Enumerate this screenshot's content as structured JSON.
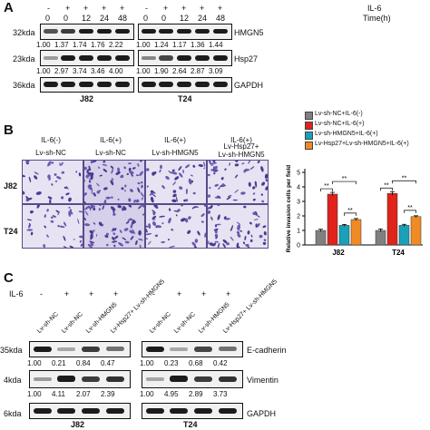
{
  "panelA": {
    "letter": "A",
    "il6_label": "IL-6",
    "time_label": "Time(h)",
    "signs": [
      "-",
      "+",
      "+",
      "+",
      "+"
    ],
    "times": [
      "0",
      "0",
      "12",
      "24",
      "48"
    ],
    "left": {
      "cell_line": "J82",
      "rows": [
        {
          "kda": "32kda",
          "values": [
            "1.00",
            "1.37",
            "1.74",
            "1.76",
            "2.22"
          ]
        },
        {
          "kda": "23kda",
          "values": [
            "1.00",
            "2.97",
            "3.74",
            "3.46",
            "4.00"
          ]
        },
        {
          "kda": "36kda",
          "values": []
        }
      ]
    },
    "right": {
      "cell_line": "T24",
      "rows": [
        {
          "protein": "HMGN5",
          "values": [
            "1.00",
            "1.24",
            "1.17",
            "1.36",
            "1.44"
          ]
        },
        {
          "protein": "Hsp27",
          "values": [
            "1.00",
            "1.90",
            "2.64",
            "2.87",
            "3.09"
          ]
        },
        {
          "protein": "GAPDH",
          "values": []
        }
      ]
    }
  },
  "panelB": {
    "letter": "B",
    "column_headers": [
      {
        "line1": "IL-6(-)",
        "line2": "Lv-sh-NC"
      },
      {
        "line1": "IL-6(+)",
        "line2": "Lv-sh-NC"
      },
      {
        "line1": "IL-6(+)",
        "line2": "Lv-sh-HMGN5"
      },
      {
        "line1": "IL-6(+)",
        "line2": "Lv-Hsp27+",
        "line3": "Lv-sh-HMGN5"
      }
    ],
    "row_labels": [
      "J82",
      "T24"
    ]
  },
  "legend": [
    {
      "label": "Lv-sh-NC+IL-6(-)",
      "color": "#808080"
    },
    {
      "label": "Lv-sh-NC+IL-6(+)",
      "color": "#e0231b"
    },
    {
      "label": "Lv-sh-HMGN5+IL-6(+)",
      "color": "#1aa0b8"
    },
    {
      "label": "Lv-Hsp27+Lv-sh-HMGN5+IL-6(+)",
      "color": "#f08a24"
    }
  ],
  "chart_data": {
    "type": "bar",
    "categories": [
      "J82",
      "T24"
    ],
    "ylabel": "Relative invasion cells per field",
    "ylim": [
      0,
      5
    ],
    "yticks": [
      "0",
      "1",
      "2",
      "3",
      "4",
      "5"
    ],
    "series": [
      {
        "name": "Lv-sh-NC+IL-6(-)",
        "values": [
          1.0,
          1.0
        ]
      },
      {
        "name": "Lv-sh-NC+IL-6(+)",
        "values": [
          3.5,
          3.55
        ]
      },
      {
        "name": "Lv-sh-HMGN5+IL-6(+)",
        "values": [
          1.35,
          1.35
        ]
      },
      {
        "name": "Lv-Hsp27+Lv-sh-HMGN5+IL-6(+)",
        "values": [
          1.75,
          1.95
        ]
      }
    ],
    "errors": [
      [
        0.08,
        0.1
      ],
      [
        0.12,
        0.12
      ],
      [
        0.06,
        0.07
      ],
      [
        0.07,
        0.06
      ]
    ],
    "significance": [
      "**",
      "**",
      "**",
      "**",
      "**",
      "**"
    ]
  },
  "panelC": {
    "letter": "C",
    "il6_label": "IL-6",
    "signs": [
      "-",
      "+",
      "+",
      "+"
    ],
    "lane_labels": [
      "Lv-sh-NC",
      "Lv-sh-NC",
      "Lv-sh-HMGN5",
      "Lv-Hsp27+ Lv-sh-HMGN5"
    ],
    "left": {
      "cell_line": "J82",
      "rows": [
        {
          "kda": "35kda",
          "values": [
            "1.00",
            "0.21",
            "0.84",
            "0.47"
          ]
        },
        {
          "kda": "4kda",
          "values": [
            "1.00",
            "4.11",
            "2.07",
            "2.39"
          ]
        },
        {
          "kda": "6kda",
          "values": []
        }
      ]
    },
    "right": {
      "cell_line": "T24",
      "rows": [
        {
          "protein": "E-cadherin",
          "values": [
            "1.00",
            "0.23",
            "0.68",
            "0.42"
          ]
        },
        {
          "protein": "Vimentin",
          "values": [
            "1.00",
            "4.95",
            "2.89",
            "3.73"
          ]
        },
        {
          "protein": "GAPDH",
          "values": []
        }
      ]
    }
  }
}
